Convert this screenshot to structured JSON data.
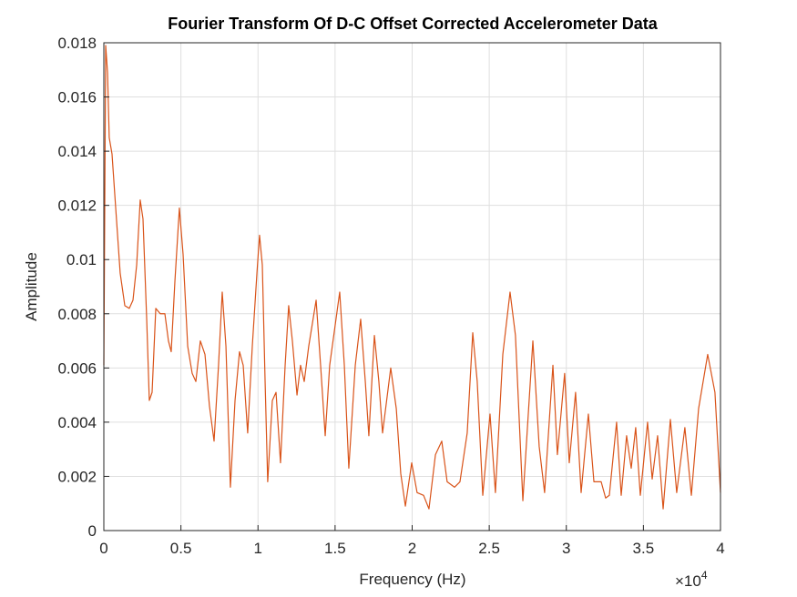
{
  "chart_data": {
    "type": "line",
    "title": "Fourier Transform Of D-C Offset Corrected Accelerometer Data",
    "x_label": "Frequency (Hz)",
    "y_label": "Amplitude",
    "x_exponent": {
      "base": "×10",
      "power": "4"
    },
    "color": "#d95319",
    "grid": true,
    "xlim": [
      0,
      40000
    ],
    "ylim": [
      0,
      0.018
    ],
    "xticks": [
      0,
      {
        "value": 5000,
        "label": "0.5"
      },
      {
        "value": 10000,
        "label": "1"
      },
      {
        "value": 15000,
        "label": "1.5"
      },
      {
        "value": 20000,
        "label": "2"
      },
      {
        "value": 25000,
        "label": "2.5"
      },
      {
        "value": 30000,
        "label": "3"
      },
      {
        "value": 35000,
        "label": "3.5"
      },
      {
        "value": 40000,
        "label": "4"
      }
    ],
    "yticks": [
      0,
      0.002,
      0.004,
      0.006,
      0.008,
      0.01,
      0.012,
      0.014,
      0.016,
      0.018
    ],
    "x": [
      0,
      120,
      240,
      350,
      530,
      770,
      1060,
      1360,
      1650,
      1890,
      2130,
      2360,
      2540,
      2780,
      2950,
      3130,
      3370,
      3660,
      3960,
      4190,
      4370,
      4610,
      4900,
      5140,
      5440,
      5730,
      5970,
      6260,
      6560,
      6850,
      7150,
      7440,
      7680,
      7920,
      8210,
      8510,
      8800,
      9040,
      9330,
      9630,
      9930,
      10100,
      10280,
      10460,
      10630,
      10930,
      11170,
      11460,
      11760,
      11990,
      12230,
      12530,
      12760,
      13000,
      13290,
      13770,
      14060,
      14360,
      14650,
      15300,
      15600,
      15890,
      16310,
      16660,
      16960,
      17190,
      17550,
      17840,
      18080,
      18610,
      18970,
      19260,
      19560,
      19970,
      20320,
      20740,
      21090,
      21510,
      21920,
      22270,
      22750,
      23100,
      23570,
      23930,
      24220,
      24580,
      25050,
      25400,
      25880,
      26350,
      26700,
      27180,
      27830,
      28240,
      28590,
      29130,
      29420,
      29890,
      30190,
      30600,
      30960,
      31430,
      31790,
      32260,
      32550,
      32790,
      33260,
      33560,
      33910,
      34210,
      34500,
      34800,
      35270,
      35570,
      35920,
      36280,
      36750,
      37160,
      37690,
      38110,
      38580,
      39170,
      39640,
      40000
    ],
    "values": [
      0.0061,
      0.0179,
      0.0169,
      0.0145,
      0.0139,
      0.0119,
      0.0095,
      0.0083,
      0.0082,
      0.0085,
      0.0098,
      0.0122,
      0.0115,
      0.0078,
      0.0048,
      0.0051,
      0.0082,
      0.008,
      0.008,
      0.007,
      0.0066,
      0.0092,
      0.0119,
      0.0102,
      0.0068,
      0.0058,
      0.0055,
      0.007,
      0.0065,
      0.0046,
      0.0033,
      0.0061,
      0.0088,
      0.0068,
      0.0016,
      0.0048,
      0.0066,
      0.0061,
      0.0036,
      0.0068,
      0.0095,
      0.0109,
      0.0098,
      0.0055,
      0.0018,
      0.0048,
      0.0051,
      0.0025,
      0.0061,
      0.0083,
      0.007,
      0.005,
      0.0061,
      0.0055,
      0.0068,
      0.0085,
      0.0061,
      0.0035,
      0.0061,
      0.0088,
      0.0061,
      0.0023,
      0.0061,
      0.0078,
      0.0055,
      0.0035,
      0.0072,
      0.0055,
      0.0036,
      0.006,
      0.0045,
      0.0021,
      0.0009,
      0.0025,
      0.0014,
      0.0013,
      0.0008,
      0.0028,
      0.0033,
      0.0018,
      0.0016,
      0.0018,
      0.0036,
      0.0073,
      0.0055,
      0.0013,
      0.0043,
      0.0014,
      0.0065,
      0.0088,
      0.0072,
      0.0011,
      0.007,
      0.0031,
      0.0014,
      0.0061,
      0.0028,
      0.0058,
      0.0025,
      0.0051,
      0.0014,
      0.0043,
      0.0018,
      0.0018,
      0.0012,
      0.0013,
      0.004,
      0.0013,
      0.0035,
      0.0023,
      0.0038,
      0.0013,
      0.004,
      0.0019,
      0.0035,
      0.0008,
      0.0041,
      0.0014,
      0.0038,
      0.0013,
      0.0045,
      0.0065,
      0.0051,
      0.0014
    ]
  }
}
